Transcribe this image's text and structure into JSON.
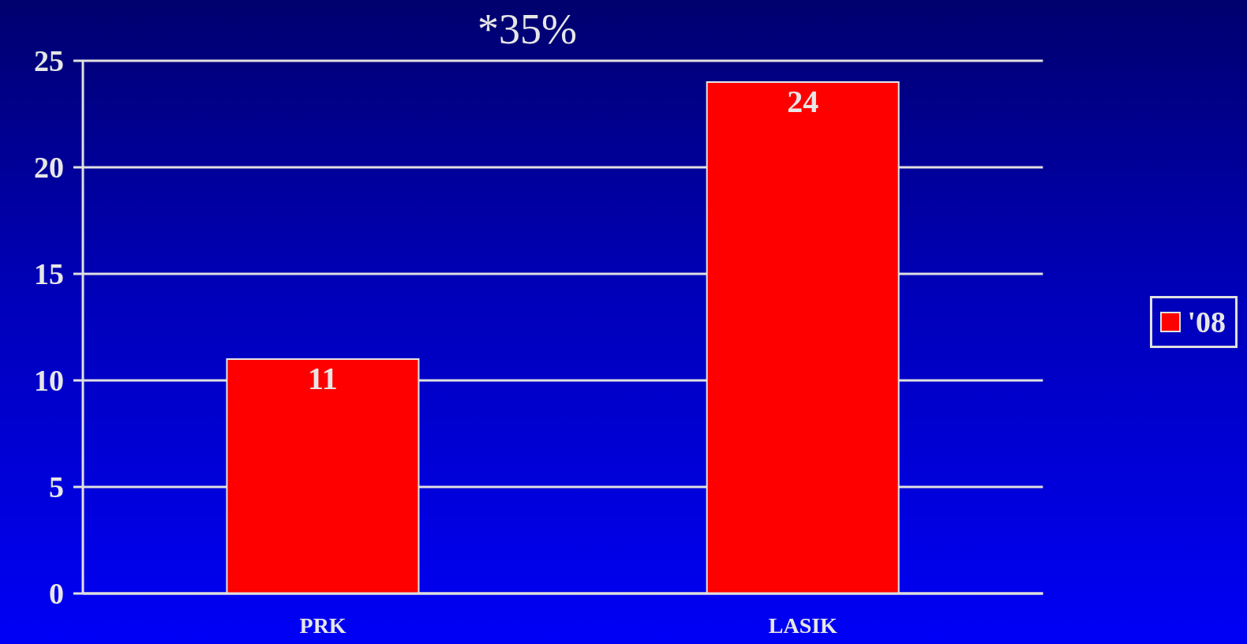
{
  "chart_data": {
    "type": "bar",
    "categories": [
      "PRK",
      "LASIK"
    ],
    "series": [
      {
        "name": "'08",
        "color": "#ff0000",
        "values": [
          11,
          24
        ]
      }
    ],
    "ylim": [
      0,
      25
    ],
    "yticks": [
      0,
      5,
      10,
      15,
      20,
      25
    ],
    "grid": "y",
    "legend": "right",
    "data_labels": true,
    "annotations": [
      "*35%"
    ]
  }
}
